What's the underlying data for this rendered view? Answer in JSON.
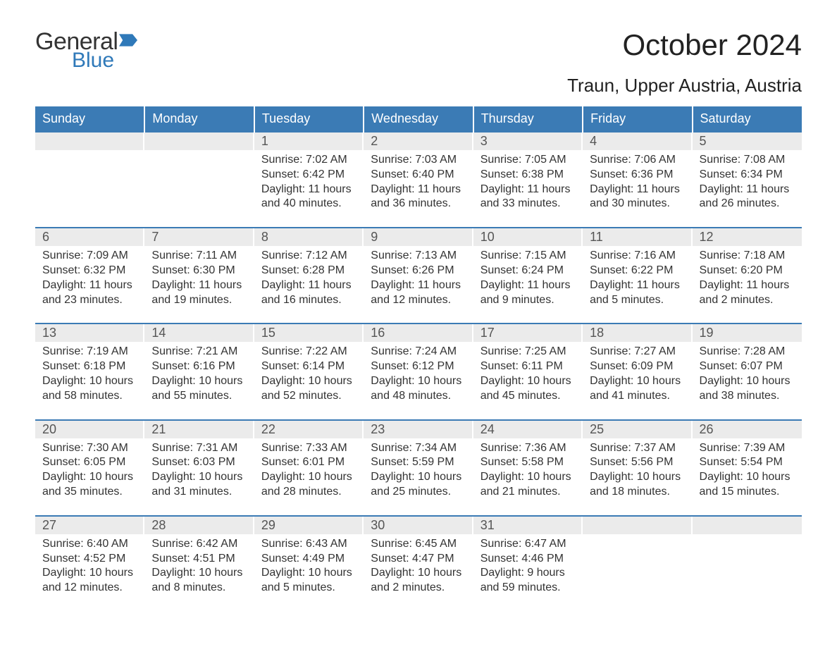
{
  "brand": {
    "main": "General",
    "sub": "Blue",
    "flag_color": "#2f79b9"
  },
  "title": "October 2024",
  "location": "Traun, Upper Austria, Austria",
  "colors": {
    "header_bg": "#3b7bb5",
    "header_text": "#ffffff",
    "daynum_bg": "#ebebeb",
    "daynum_text": "#555555",
    "body_text": "#333333",
    "brand_blue": "#2f79b9",
    "page_bg": "#ffffff",
    "row_divider": "#3b7bb5"
  },
  "typography": {
    "title_fontsize": 42,
    "location_fontsize": 26,
    "header_fontsize": 18,
    "daynum_fontsize": 18,
    "body_fontsize": 16
  },
  "day_labels": [
    "Sunday",
    "Monday",
    "Tuesday",
    "Wednesday",
    "Thursday",
    "Friday",
    "Saturday"
  ],
  "weeks": [
    [
      null,
      null,
      {
        "n": "1",
        "sr": "7:02 AM",
        "ss": "6:42 PM",
        "dl": "11 hours and 40 minutes."
      },
      {
        "n": "2",
        "sr": "7:03 AM",
        "ss": "6:40 PM",
        "dl": "11 hours and 36 minutes."
      },
      {
        "n": "3",
        "sr": "7:05 AM",
        "ss": "6:38 PM",
        "dl": "11 hours and 33 minutes."
      },
      {
        "n": "4",
        "sr": "7:06 AM",
        "ss": "6:36 PM",
        "dl": "11 hours and 30 minutes."
      },
      {
        "n": "5",
        "sr": "7:08 AM",
        "ss": "6:34 PM",
        "dl": "11 hours and 26 minutes."
      }
    ],
    [
      {
        "n": "6",
        "sr": "7:09 AM",
        "ss": "6:32 PM",
        "dl": "11 hours and 23 minutes."
      },
      {
        "n": "7",
        "sr": "7:11 AM",
        "ss": "6:30 PM",
        "dl": "11 hours and 19 minutes."
      },
      {
        "n": "8",
        "sr": "7:12 AM",
        "ss": "6:28 PM",
        "dl": "11 hours and 16 minutes."
      },
      {
        "n": "9",
        "sr": "7:13 AM",
        "ss": "6:26 PM",
        "dl": "11 hours and 12 minutes."
      },
      {
        "n": "10",
        "sr": "7:15 AM",
        "ss": "6:24 PM",
        "dl": "11 hours and 9 minutes."
      },
      {
        "n": "11",
        "sr": "7:16 AM",
        "ss": "6:22 PM",
        "dl": "11 hours and 5 minutes."
      },
      {
        "n": "12",
        "sr": "7:18 AM",
        "ss": "6:20 PM",
        "dl": "11 hours and 2 minutes."
      }
    ],
    [
      {
        "n": "13",
        "sr": "7:19 AM",
        "ss": "6:18 PM",
        "dl": "10 hours and 58 minutes."
      },
      {
        "n": "14",
        "sr": "7:21 AM",
        "ss": "6:16 PM",
        "dl": "10 hours and 55 minutes."
      },
      {
        "n": "15",
        "sr": "7:22 AM",
        "ss": "6:14 PM",
        "dl": "10 hours and 52 minutes."
      },
      {
        "n": "16",
        "sr": "7:24 AM",
        "ss": "6:12 PM",
        "dl": "10 hours and 48 minutes."
      },
      {
        "n": "17",
        "sr": "7:25 AM",
        "ss": "6:11 PM",
        "dl": "10 hours and 45 minutes."
      },
      {
        "n": "18",
        "sr": "7:27 AM",
        "ss": "6:09 PM",
        "dl": "10 hours and 41 minutes."
      },
      {
        "n": "19",
        "sr": "7:28 AM",
        "ss": "6:07 PM",
        "dl": "10 hours and 38 minutes."
      }
    ],
    [
      {
        "n": "20",
        "sr": "7:30 AM",
        "ss": "6:05 PM",
        "dl": "10 hours and 35 minutes."
      },
      {
        "n": "21",
        "sr": "7:31 AM",
        "ss": "6:03 PM",
        "dl": "10 hours and 31 minutes."
      },
      {
        "n": "22",
        "sr": "7:33 AM",
        "ss": "6:01 PM",
        "dl": "10 hours and 28 minutes."
      },
      {
        "n": "23",
        "sr": "7:34 AM",
        "ss": "5:59 PM",
        "dl": "10 hours and 25 minutes."
      },
      {
        "n": "24",
        "sr": "7:36 AM",
        "ss": "5:58 PM",
        "dl": "10 hours and 21 minutes."
      },
      {
        "n": "25",
        "sr": "7:37 AM",
        "ss": "5:56 PM",
        "dl": "10 hours and 18 minutes."
      },
      {
        "n": "26",
        "sr": "7:39 AM",
        "ss": "5:54 PM",
        "dl": "10 hours and 15 minutes."
      }
    ],
    [
      {
        "n": "27",
        "sr": "6:40 AM",
        "ss": "4:52 PM",
        "dl": "10 hours and 12 minutes."
      },
      {
        "n": "28",
        "sr": "6:42 AM",
        "ss": "4:51 PM",
        "dl": "10 hours and 8 minutes."
      },
      {
        "n": "29",
        "sr": "6:43 AM",
        "ss": "4:49 PM",
        "dl": "10 hours and 5 minutes."
      },
      {
        "n": "30",
        "sr": "6:45 AM",
        "ss": "4:47 PM",
        "dl": "10 hours and 2 minutes."
      },
      {
        "n": "31",
        "sr": "6:47 AM",
        "ss": "4:46 PM",
        "dl": "9 hours and 59 minutes."
      },
      null,
      null
    ]
  ],
  "labels": {
    "sunrise": "Sunrise: ",
    "sunset": "Sunset: ",
    "daylight": "Daylight: "
  }
}
